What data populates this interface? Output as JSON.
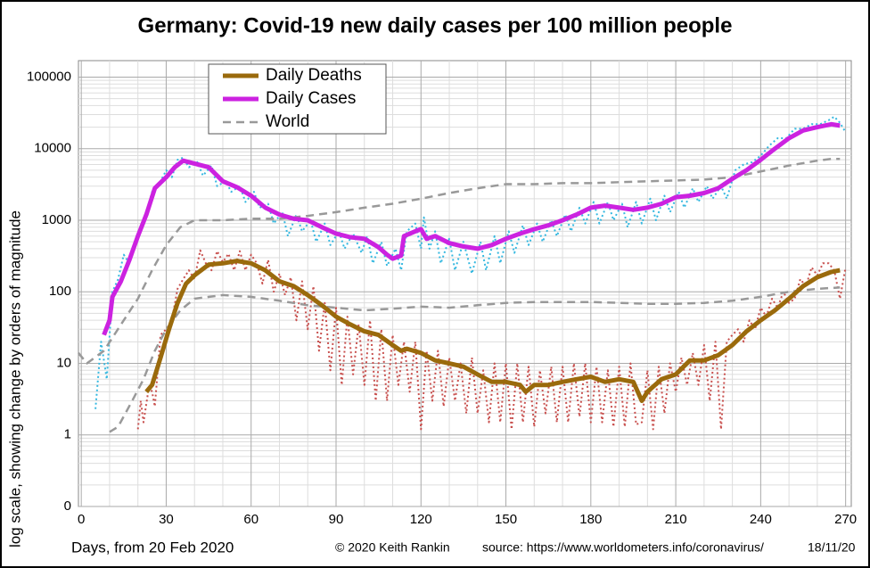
{
  "chart_data": {
    "type": "line",
    "title": "Germany: Covid-19 new daily cases per 100 million people",
    "y_label": "log scale, showing change by orders of magnitude",
    "x_label": "Days, from 20 Feb 2020",
    "annotations": [
      "© 2020  Keith Rankin",
      "source: https://www.worldometers.info/coronavirus/",
      "18/11/20"
    ],
    "log_scale": true,
    "grid": true,
    "minor_grid": true,
    "legend": "top-left",
    "xlim": [
      -1,
      272
    ],
    "ylim": [
      0.1,
      170000
    ],
    "xticks": [
      0,
      30,
      60,
      90,
      120,
      150,
      180,
      210,
      240,
      270
    ],
    "yticks": [
      {
        "value": 0.1,
        "label": "0"
      },
      1,
      10,
      100,
      1000,
      10000,
      100000
    ],
    "series": [
      {
        "color": "#35b8e0",
        "dash": "dotted",
        "x": [
          5,
          7,
          9,
          11,
          13,
          15,
          17,
          19,
          22,
          25,
          28,
          30,
          32,
          34,
          36,
          38,
          41,
          43,
          46,
          48,
          51,
          53,
          56,
          58,
          61,
          63,
          66,
          68,
          71,
          73,
          76,
          78,
          81,
          83,
          86,
          88,
          91,
          93,
          96,
          99,
          101,
          103,
          106,
          108,
          111,
          113,
          115,
          118,
          120,
          121,
          123,
          125,
          127,
          130,
          132,
          135,
          138,
          141,
          143,
          146,
          148,
          151,
          153,
          156,
          158,
          161,
          163,
          166,
          168,
          171,
          173,
          176,
          178,
          181,
          183,
          186,
          188,
          191,
          193,
          196,
          198,
          201,
          203,
          206,
          208,
          211,
          213,
          216,
          218,
          221,
          223,
          226,
          228,
          231,
          234,
          237,
          240,
          243,
          246,
          249,
          252,
          255,
          258,
          261,
          264,
          266,
          268,
          270
        ],
        "values": [
          2.3,
          20,
          6,
          100,
          150,
          330,
          250,
          500,
          900,
          2500,
          3500,
          5000,
          4000,
          7000,
          7500,
          5500,
          6500,
          4200,
          5800,
          3000,
          3500,
          2500,
          3000,
          1800,
          2500,
          1500,
          1700,
          900,
          1300,
          600,
          1200,
          700,
          1000,
          500,
          900,
          450,
          700,
          400,
          650,
          350,
          600,
          250,
          500,
          230,
          400,
          200,
          700,
          900,
          400,
          1100,
          400,
          700,
          250,
          550,
          200,
          500,
          180,
          500,
          200,
          600,
          250,
          700,
          350,
          850,
          450,
          900,
          500,
          1000,
          600,
          1200,
          700,
          1500,
          900,
          1800,
          900,
          1800,
          1000,
          1700,
          800,
          1800,
          900,
          2000,
          1000,
          2200,
          1300,
          2500,
          1500,
          2800,
          1800,
          3000,
          2000,
          3000,
          2000,
          5000,
          6000,
          6500,
          8000,
          11000,
          14000,
          14000,
          19000,
          19000,
          22000,
          22000,
          25000,
          28000,
          23000,
          17000
        ]
      },
      {
        "color": "#c8504e",
        "dash": "dotted",
        "x": [
          20,
          21,
          22,
          24,
          25,
          26,
          28,
          30,
          32,
          34,
          36,
          38,
          40,
          42,
          44,
          46,
          48,
          50,
          52,
          54,
          56,
          58,
          60,
          62,
          64,
          66,
          68,
          70,
          72,
          74,
          76,
          78,
          80,
          82,
          84,
          86,
          88,
          90,
          92,
          94,
          96,
          98,
          100,
          102,
          104,
          106,
          108,
          110,
          112,
          114,
          116,
          118,
          120,
          122,
          124,
          126,
          128,
          130,
          132,
          134,
          136,
          138,
          140,
          142,
          144,
          146,
          148,
          150,
          152,
          154,
          156,
          158,
          160,
          162,
          164,
          166,
          168,
          170,
          172,
          174,
          176,
          178,
          180,
          182,
          184,
          186,
          188,
          190,
          192,
          194,
          196,
          198,
          200,
          202,
          204,
          206,
          208,
          210,
          212,
          214,
          216,
          218,
          220,
          222,
          224,
          226,
          228,
          230,
          232,
          234,
          236,
          238,
          240,
          242,
          244,
          246,
          248,
          250,
          252,
          254,
          256,
          258,
          260,
          262,
          264,
          266,
          268,
          270
        ],
        "values": [
          1.2,
          3,
          1.5,
          5,
          4,
          2.5,
          25,
          30,
          40,
          110,
          150,
          200,
          150,
          380,
          250,
          200,
          370,
          260,
          340,
          200,
          370,
          200,
          330,
          250,
          130,
          280,
          100,
          180,
          90,
          160,
          40,
          140,
          30,
          120,
          15,
          70,
          8,
          60,
          5,
          45,
          7,
          35,
          5,
          40,
          3,
          30,
          3,
          25,
          5,
          20,
          4,
          20,
          1.2,
          15,
          3,
          15,
          2.5,
          12,
          3,
          10,
          2,
          12,
          2,
          8,
          1.5,
          10,
          1.5,
          10,
          1.2,
          10,
          1.5,
          9,
          1.3,
          8,
          2,
          9,
          1.5,
          9,
          1.5,
          10,
          1.8,
          10,
          1.5,
          9,
          1.5,
          8,
          1.3,
          9,
          1.3,
          10,
          1.4,
          1.5,
          8,
          1.2,
          9,
          2,
          10,
          4,
          12,
          5,
          14,
          5,
          18,
          3,
          20,
          1.2,
          20,
          25,
          30,
          20,
          40,
          30,
          60,
          45,
          80,
          60,
          100,
          70,
          80,
          150,
          120,
          220,
          170,
          250,
          250,
          200,
          80,
          220
        ]
      },
      {
        "name": "World",
        "color": "#999999",
        "dash": "dashed",
        "x": [
          -1,
          2,
          8,
          15,
          20,
          25,
          30,
          35,
          40,
          50,
          60,
          70,
          80,
          90,
          100,
          110,
          120,
          130,
          140,
          150,
          160,
          170,
          180,
          190,
          200,
          210,
          220,
          230,
          240,
          250,
          260,
          265,
          268
        ],
        "values": [
          14,
          10,
          15,
          40,
          80,
          200,
          450,
          800,
          1000,
          1000,
          1050,
          1050,
          1150,
          1300,
          1500,
          1700,
          2000,
          2400,
          2800,
          3200,
          3200,
          3300,
          3300,
          3400,
          3500,
          3600,
          3700,
          4000,
          4800,
          5800,
          6800,
          7200,
          7200
        ]
      },
      {
        "color": "#999999",
        "dash": "dashed",
        "x": [
          10,
          13,
          18,
          22,
          26,
          30,
          35,
          40,
          50,
          60,
          70,
          80,
          90,
          100,
          110,
          120,
          130,
          140,
          150,
          160,
          170,
          180,
          190,
          200,
          210,
          220,
          230,
          240,
          250,
          260,
          268
        ],
        "values": [
          1.1,
          1.3,
          3,
          6,
          15,
          30,
          55,
          80,
          90,
          85,
          75,
          65,
          60,
          55,
          58,
          62,
          60,
          65,
          70,
          72,
          72,
          72,
          70,
          68,
          68,
          70,
          75,
          85,
          100,
          110,
          115
        ]
      },
      {
        "name": "Daily Cases",
        "color": "#cc22e0",
        "dash": "solid",
        "x": [
          8,
          10,
          11,
          14,
          17,
          20,
          23,
          26,
          30,
          33,
          36,
          40,
          45,
          50,
          55,
          60,
          65,
          70,
          75,
          80,
          85,
          90,
          95,
          100,
          105,
          108,
          110,
          113,
          114,
          118,
          120,
          122,
          125,
          130,
          135,
          140,
          145,
          150,
          155,
          160,
          165,
          170,
          175,
          180,
          185,
          190,
          195,
          200,
          205,
          210,
          215,
          220,
          225,
          230,
          235,
          240,
          245,
          250,
          255,
          260,
          265,
          268
        ],
        "values": [
          25,
          40,
          85,
          140,
          280,
          600,
          1200,
          2800,
          4000,
          5500,
          6800,
          6200,
          5500,
          3500,
          2900,
          2200,
          1500,
          1200,
          1050,
          1000,
          800,
          650,
          580,
          550,
          420,
          330,
          290,
          320,
          600,
          700,
          750,
          550,
          600,
          480,
          430,
          400,
          450,
          550,
          650,
          750,
          850,
          1000,
          1200,
          1500,
          1600,
          1500,
          1400,
          1500,
          1700,
          2100,
          2200,
          2400,
          2800,
          3800,
          5000,
          7000,
          10000,
          14000,
          18000,
          20000,
          22000,
          21000
        ]
      },
      {
        "name": "Daily Deaths",
        "color": "#9a6a0c",
        "dash": "solid",
        "x": [
          23,
          25,
          28,
          31,
          34,
          37,
          40,
          45,
          50,
          55,
          60,
          65,
          70,
          75,
          80,
          85,
          90,
          95,
          100,
          105,
          110,
          113,
          115,
          120,
          125,
          130,
          135,
          140,
          145,
          150,
          155,
          157,
          160,
          165,
          170,
          175,
          180,
          185,
          190,
          195,
          198,
          200,
          205,
          210,
          215,
          220,
          225,
          230,
          235,
          240,
          245,
          250,
          255,
          260,
          265,
          268
        ],
        "values": [
          4,
          5,
          12,
          30,
          70,
          130,
          170,
          240,
          250,
          270,
          250,
          200,
          140,
          120,
          90,
          65,
          45,
          35,
          28,
          25,
          18,
          15,
          16,
          14,
          11,
          10,
          9,
          7,
          5.5,
          5.5,
          5,
          4,
          5,
          5,
          5.5,
          6,
          6.5,
          5.5,
          6,
          5.5,
          3,
          4,
          6,
          7,
          11,
          11,
          13,
          18,
          28,
          40,
          55,
          80,
          120,
          160,
          190,
          200
        ]
      }
    ]
  }
}
